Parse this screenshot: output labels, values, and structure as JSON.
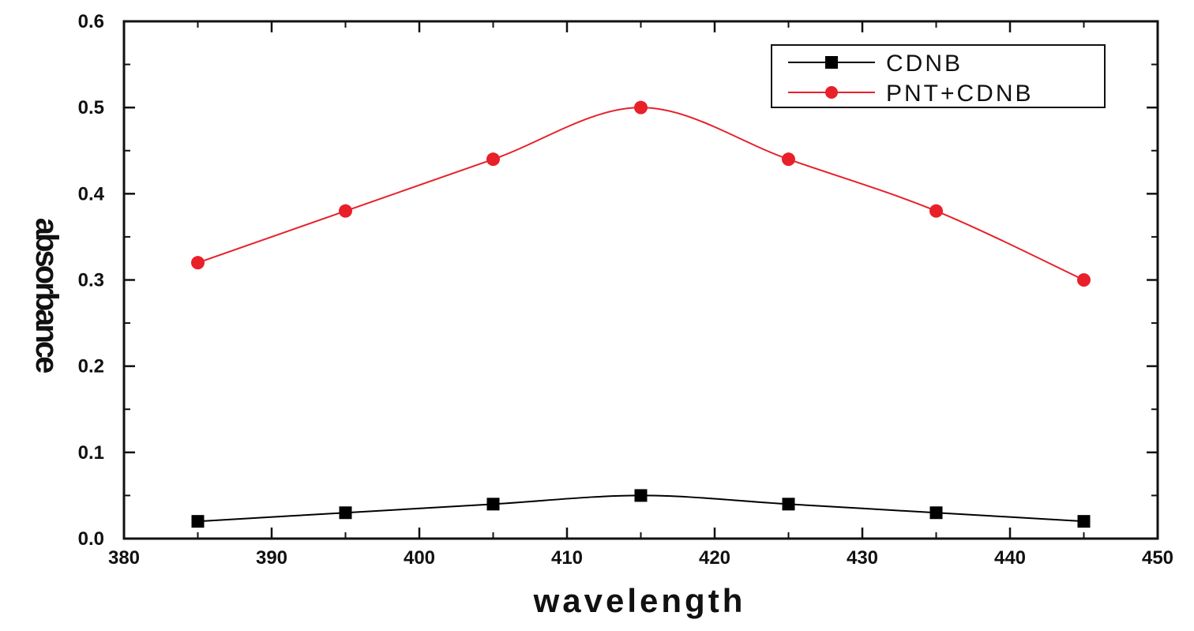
{
  "chart_data": {
    "type": "line",
    "title": "",
    "xlabel": "wavelength",
    "ylabel": "absorbance",
    "xlim": [
      380,
      450
    ],
    "ylim": [
      0.0,
      0.6
    ],
    "x_ticks": [
      380,
      390,
      400,
      410,
      420,
      430,
      440,
      450
    ],
    "x_tick_labels": [
      "380",
      "390",
      "400",
      "410",
      "420",
      "430",
      "440",
      "450"
    ],
    "y_ticks": [
      0.0,
      0.1,
      0.2,
      0.3,
      0.4,
      0.5,
      0.6
    ],
    "y_tick_labels": [
      "0.0",
      "0.1",
      "0.2",
      "0.3",
      "0.4",
      "0.5",
      "0.6"
    ],
    "grid": false,
    "legend_position": "top-right",
    "x": [
      385,
      395,
      405,
      415,
      425,
      435,
      445
    ],
    "series": [
      {
        "name": "CDNB",
        "color": "#000000",
        "marker": "square",
        "values": [
          0.02,
          0.03,
          0.04,
          0.05,
          0.04,
          0.03,
          0.02
        ]
      },
      {
        "name": "PNT+CDNB",
        "color": "#e8202a",
        "marker": "circle",
        "values": [
          0.32,
          0.38,
          0.44,
          0.5,
          0.44,
          0.38,
          0.3
        ]
      }
    ]
  }
}
